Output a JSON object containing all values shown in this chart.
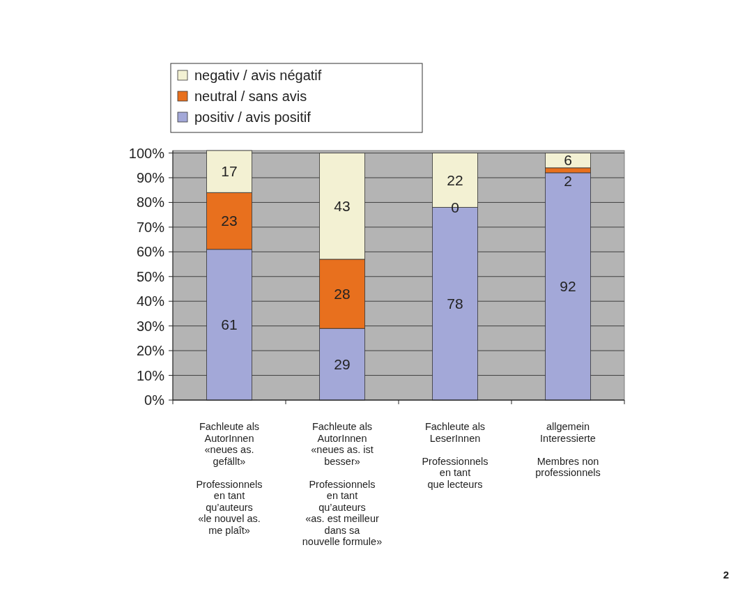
{
  "chart_data": {
    "type": "bar",
    "stacked": true,
    "categories": [
      "Fachleute als\nAutorInnen\n«neues as.\ngefällt»\n\nProfessionnels\nen tant\nqu’auteurs\n«le nouvel as.\nme plaît»",
      "Fachleute als\nAutorInnen\n«neues as. ist\nbesser»\n\nProfessionnels\nen tant\nqu’auteurs\n«as. est meilleur\ndans sa\nnouvelle formule»",
      "Fachleute als\nLeserInnen\n\nProfessionnels\nen tant\nque lecteurs",
      "allgemein\nInteressierte\n\nMembres non\nprofessionnels"
    ],
    "series": [
      {
        "name": "positiv / avis positif",
        "color": "#a3a8d8",
        "values": [
          61,
          29,
          78,
          92
        ]
      },
      {
        "name": "neutral / sans avis",
        "color": "#e8701e",
        "values": [
          23,
          28,
          0,
          2
        ]
      },
      {
        "name": "negativ / avis négatif",
        "color": "#f3f1d3",
        "values": [
          17,
          43,
          22,
          6
        ]
      }
    ],
    "ylim": [
      0,
      101
    ],
    "yticks": [
      {
        "value": 0,
        "label": "0%"
      },
      {
        "value": 10,
        "label": "10%"
      },
      {
        "value": 20,
        "label": "20%"
      },
      {
        "value": 30,
        "label": "30%"
      },
      {
        "value": 40,
        "label": "40%"
      },
      {
        "value": 50,
        "label": "50%"
      },
      {
        "value": 60,
        "label": "60%"
      },
      {
        "value": 70,
        "label": "70%"
      },
      {
        "value": 80,
        "label": "80%"
      },
      {
        "value": 90,
        "label": "90%"
      },
      {
        "value": 100,
        "label": "100%"
      }
    ],
    "grid": "y",
    "legend": "top left",
    "data_labels": true,
    "annotations": [
      "2"
    ]
  }
}
